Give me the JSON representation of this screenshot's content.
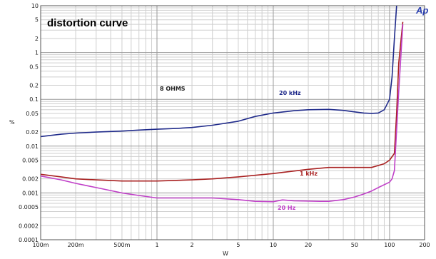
{
  "chart_data": {
    "type": "line",
    "title": "distortion curve",
    "xlabel": "W",
    "ylabel": "%",
    "xscale": "log",
    "yscale": "log",
    "xlim": [
      0.1,
      200
    ],
    "ylim": [
      0.0001,
      10
    ],
    "grid": true,
    "logo": "Ap",
    "annotation": "8 OHMS",
    "x_ticks": [
      {
        "value": 0.1,
        "label": "100m"
      },
      {
        "value": 0.2,
        "label": "200m"
      },
      {
        "value": 0.5,
        "label": "500m"
      },
      {
        "value": 1,
        "label": "1"
      },
      {
        "value": 2,
        "label": "2"
      },
      {
        "value": 5,
        "label": "5"
      },
      {
        "value": 10,
        "label": "10"
      },
      {
        "value": 20,
        "label": "20"
      },
      {
        "value": 50,
        "label": "50"
      },
      {
        "value": 100,
        "label": "100"
      },
      {
        "value": 200,
        "label": "200"
      }
    ],
    "y_ticks": [
      {
        "value": 10,
        "label": "10"
      },
      {
        "value": 5,
        "label": "5"
      },
      {
        "value": 2,
        "label": "2"
      },
      {
        "value": 1,
        "label": "1"
      },
      {
        "value": 0.5,
        "label": "0.5"
      },
      {
        "value": 0.2,
        "label": "0.2"
      },
      {
        "value": 0.1,
        "label": "0.1"
      },
      {
        "value": 0.05,
        "label": "0.05"
      },
      {
        "value": 0.02,
        "label": "0.02"
      },
      {
        "value": 0.01,
        "label": "0.01"
      },
      {
        "value": 0.005,
        "label": "0.005"
      },
      {
        "value": 0.002,
        "label": "0.002"
      },
      {
        "value": 0.001,
        "label": "0.001"
      },
      {
        "value": 0.0005,
        "label": "0.0005"
      },
      {
        "value": 0.0002,
        "label": "0.0002"
      },
      {
        "value": 0.0001,
        "label": "0.0001"
      }
    ],
    "series": [
      {
        "name": "20 kHz",
        "color": "#1f2a8a",
        "x": [
          0.1,
          0.15,
          0.2,
          0.3,
          0.5,
          0.7,
          1,
          1.5,
          2,
          3,
          5,
          7,
          10,
          15,
          20,
          30,
          40,
          50,
          60,
          70,
          80,
          90,
          100,
          105,
          110,
          115
        ],
        "y": [
          0.016,
          0.018,
          0.019,
          0.02,
          0.021,
          0.022,
          0.023,
          0.024,
          0.025,
          0.028,
          0.034,
          0.043,
          0.051,
          0.057,
          0.06,
          0.061,
          0.058,
          0.054,
          0.051,
          0.05,
          0.051,
          0.06,
          0.1,
          0.3,
          2,
          10
        ]
      },
      {
        "name": "1 kHz",
        "color": "#a82020",
        "x": [
          0.1,
          0.15,
          0.2,
          0.3,
          0.5,
          1,
          2,
          3,
          5,
          10,
          20,
          30,
          50,
          70,
          90,
          100,
          110,
          115,
          120,
          130
        ],
        "y": [
          0.0025,
          0.0022,
          0.002,
          0.0019,
          0.0018,
          0.0018,
          0.0019,
          0.002,
          0.0022,
          0.0026,
          0.0032,
          0.0035,
          0.0035,
          0.0035,
          0.0042,
          0.005,
          0.007,
          0.05,
          0.6,
          4.5
        ]
      },
      {
        "name": "20 Hz",
        "color": "#c040c8",
        "x": [
          0.1,
          0.15,
          0.2,
          0.3,
          0.5,
          0.7,
          1,
          2,
          3,
          5,
          7,
          10,
          12,
          15,
          20,
          25,
          30,
          40,
          50,
          60,
          70,
          80,
          100,
          105,
          110,
          120,
          130
        ],
        "y": [
          0.0023,
          0.0019,
          0.0016,
          0.0013,
          0.001,
          0.00088,
          0.00078,
          0.00078,
          0.00078,
          0.00072,
          0.00066,
          0.00065,
          0.00071,
          0.00068,
          0.00067,
          0.00066,
          0.00066,
          0.00072,
          0.00082,
          0.00095,
          0.0011,
          0.0013,
          0.0017,
          0.002,
          0.003,
          0.15,
          4
        ]
      }
    ]
  }
}
